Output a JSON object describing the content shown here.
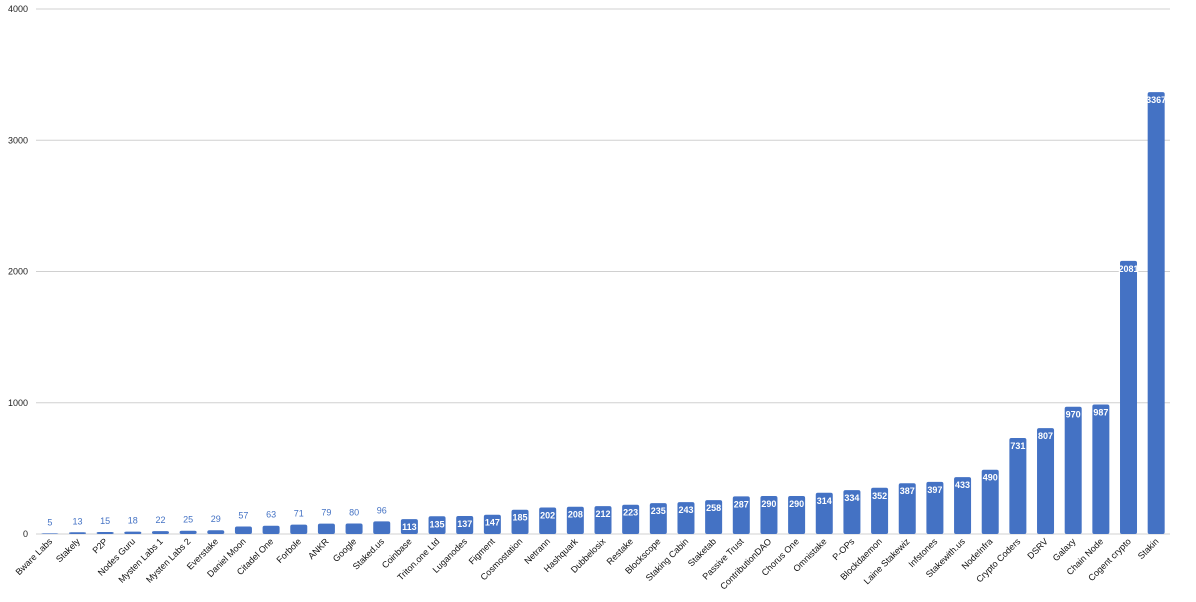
{
  "chart_data": {
    "type": "bar",
    "title": "",
    "xlabel": "",
    "ylabel": "",
    "ylim": [
      0,
      4000
    ],
    "yticks": [
      0,
      1000,
      2000,
      3000,
      4000
    ],
    "grid": true,
    "legend": "none",
    "bar_color": "#4472c4",
    "grid_color": "#d0d0d0",
    "categories": [
      "Bware Labs",
      "Stakely",
      "P2P",
      "Nodes Guru",
      "Mysten Labs 1",
      "Mysten Labs 2",
      "Everstake",
      "Daniel Moon",
      "Citadel One",
      "Forbole",
      "ANKR",
      "Google",
      "Staked.us",
      "Coinbase",
      "Triton.one Ltd",
      "Luganodes",
      "Figment",
      "Cosmostation",
      "Netrann",
      "Hashquark",
      "Dubbelosix",
      "Restake",
      "Blockscope",
      "Staking Cabin",
      "Staketab",
      "Passive Trust",
      "ContributionDAO",
      "Chorus One",
      "Omnistake",
      "P-OPs",
      "Blockdaemon",
      "Laine Stakewiz",
      "Infstones",
      "Stakewith.us",
      "NodeInfra",
      "Crypto Coders",
      "DSRV",
      "Galaxy",
      "Chain Node",
      "Cogent crypto",
      "Stakin"
    ],
    "values": [
      5,
      13,
      15,
      18,
      22,
      25,
      29,
      57,
      63,
      71,
      79,
      80,
      96,
      113,
      135,
      137,
      147,
      185,
      202,
      208,
      212,
      223,
      235,
      243,
      258,
      287,
      290,
      290,
      314,
      334,
      352,
      387,
      397,
      433,
      490,
      731,
      807,
      970,
      987,
      2081,
      3367
    ]
  }
}
